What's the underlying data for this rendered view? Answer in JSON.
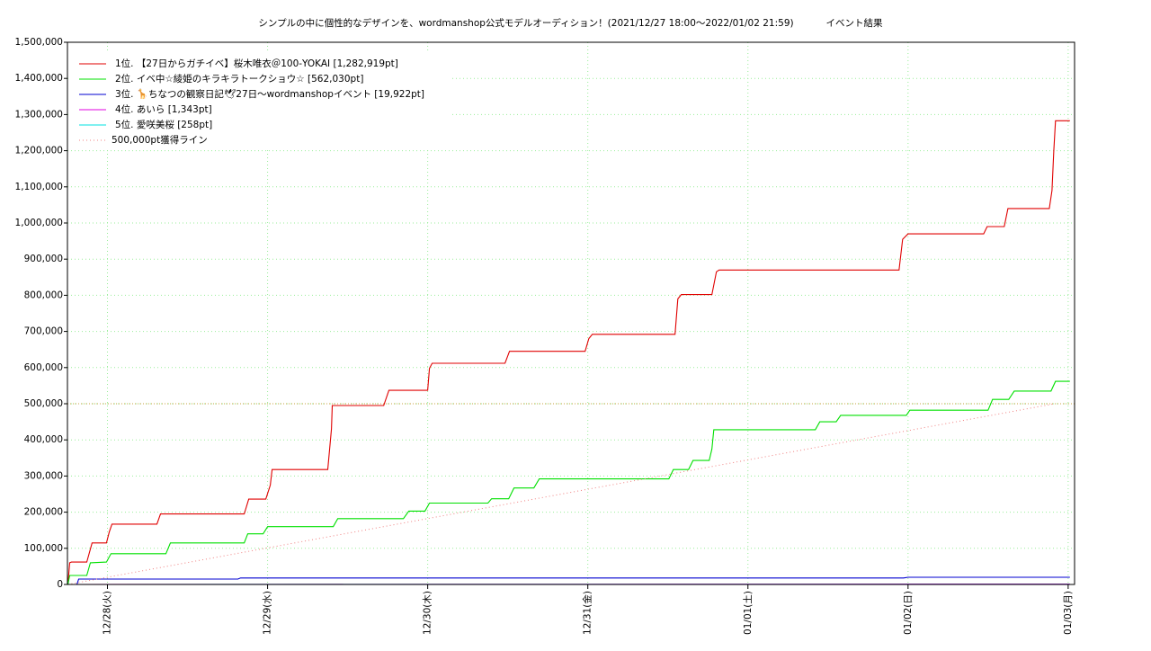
{
  "chart_data": {
    "type": "line",
    "title": "シンプルの中に個性的なデザインを、wordmanshop公式モデルオーディション！(2021/12/27 18:00〜2022/01/02 21:59)",
    "subtitle": "イベント結果",
    "xlim": [
      -0.25,
      6.04
    ],
    "xticks": [
      {
        "value": 0,
        "label": "12/28(火)"
      },
      {
        "value": 1,
        "label": "12/29(水)"
      },
      {
        "value": 2,
        "label": "12/30(木)"
      },
      {
        "value": 3,
        "label": "12/31(金)"
      },
      {
        "value": 4,
        "label": "01/01(土)"
      },
      {
        "value": 5,
        "label": "01/02(日)"
      },
      {
        "value": 6,
        "label": "01/03(月)"
      }
    ],
    "ylim": [
      0,
      1500000
    ],
    "yticks": [
      {
        "value": 0,
        "label": "0"
      },
      {
        "value": 100000,
        "label": "100,000"
      },
      {
        "value": 200000,
        "label": "200,000"
      },
      {
        "value": 300000,
        "label": "300,000"
      },
      {
        "value": 400000,
        "label": "400,000"
      },
      {
        "value": 500000,
        "label": "500,000"
      },
      {
        "value": 600000,
        "label": "600,000"
      },
      {
        "value": 700000,
        "label": "700,000"
      },
      {
        "value": 800000,
        "label": "800,000"
      },
      {
        "value": 900000,
        "label": "900,000"
      },
      {
        "value": 1000000,
        "label": "1,000,000"
      },
      {
        "value": 1100000,
        "label": "1,100,000"
      },
      {
        "value": 1200000,
        "label": "1,200,000"
      },
      {
        "value": 1300000,
        "label": "1,300,000"
      },
      {
        "value": 1400000,
        "label": "1,400,000"
      },
      {
        "value": 1500000,
        "label": "1,500,000"
      }
    ],
    "grid": true,
    "legend": "top-left",
    "hline": {
      "value": 500000,
      "color": "#c8a040"
    },
    "series": [
      {
        "name": "1位. 【27日からガチイベ】桜木唯衣＠100-YOKAI [1,282,919pt]",
        "color": "#e00000",
        "x": [
          -0.247,
          -0.236,
          -0.225,
          -0.129,
          -0.096,
          -0.006,
          0.011,
          0.028,
          0.309,
          0.331,
          0.854,
          0.882,
          0.989,
          1.017,
          1.028,
          1.376,
          1.399,
          1.404,
          1.725,
          1.758,
          2.0,
          2.011,
          2.028,
          2.483,
          2.511,
          2.983,
          3.006,
          3.028,
          3.545,
          3.562,
          3.584,
          3.775,
          3.803,
          3.82,
          4.944,
          4.966,
          5.0,
          5.472,
          5.494,
          5.601,
          5.624,
          5.882,
          5.899,
          5.91,
          5.921,
          6.011
        ],
        "values": [
          0,
          60000,
          62000,
          62000,
          115000,
          115000,
          145000,
          167000,
          167000,
          195000,
          195000,
          236000,
          236000,
          275000,
          318000,
          318000,
          430000,
          495000,
          495000,
          537000,
          537000,
          598000,
          612000,
          612000,
          645000,
          645000,
          680000,
          692000,
          692000,
          790000,
          802000,
          802000,
          865000,
          870000,
          870000,
          955000,
          970000,
          970000,
          990000,
          990000,
          1040000,
          1040000,
          1090000,
          1200000,
          1282919,
          1282919
        ]
      },
      {
        "name": "2位. イベ中☆綾姫のキラキラトークショウ☆ [562,030pt]",
        "color": "#00e000",
        "x": [
          -0.247,
          -0.236,
          -0.129,
          -0.107,
          -0.006,
          0.022,
          0.365,
          0.393,
          0.854,
          0.876,
          0.972,
          1.0,
          1.41,
          1.438,
          1.848,
          1.882,
          1.983,
          2.011,
          2.376,
          2.399,
          2.506,
          2.539,
          2.663,
          2.697,
          3.506,
          3.534,
          3.629,
          3.657,
          3.758,
          3.775,
          3.787,
          4.421,
          4.449,
          4.551,
          4.579,
          4.989,
          5.011,
          5.5,
          5.528,
          5.629,
          5.663,
          5.893,
          5.921,
          6.011
        ],
        "values": [
          0,
          25000,
          25000,
          60000,
          62000,
          85000,
          85000,
          115000,
          115000,
          140000,
          140000,
          160000,
          160000,
          182000,
          182000,
          203000,
          203000,
          225000,
          225000,
          237000,
          237000,
          267000,
          267000,
          292000,
          292000,
          318000,
          318000,
          343000,
          343000,
          375000,
          428000,
          428000,
          450000,
          450000,
          468000,
          468000,
          482000,
          482000,
          512000,
          512000,
          535000,
          535000,
          562030,
          562030
        ]
      },
      {
        "name": "3位. 🦒ちなつの観察日記🕊27日〜wordmanshopイベント [19,922pt]",
        "color": "#0000d0",
        "x": [
          -0.247,
          -0.191,
          -0.18,
          0.815,
          0.831,
          4.972,
          5.0,
          6.011
        ],
        "values": [
          0,
          0,
          15000,
          15000,
          18000,
          18000,
          19922,
          19922
        ]
      },
      {
        "name": "4位. あいら [1,343pt]",
        "color": "#e000e0",
        "x": [
          -0.247,
          6.011
        ],
        "values": [
          0,
          1343
        ]
      },
      {
        "name": "5位. 愛咲美桜 [258pt]",
        "color": "#00e0e0",
        "x": [
          -0.247,
          6.011
        ],
        "values": [
          0,
          258
        ]
      },
      {
        "name": "500,000pt獲得ライン",
        "color": "#f08080",
        "dashed": true,
        "x": [
          -0.247,
          5.916
        ],
        "values": [
          0,
          500000
        ]
      }
    ]
  }
}
